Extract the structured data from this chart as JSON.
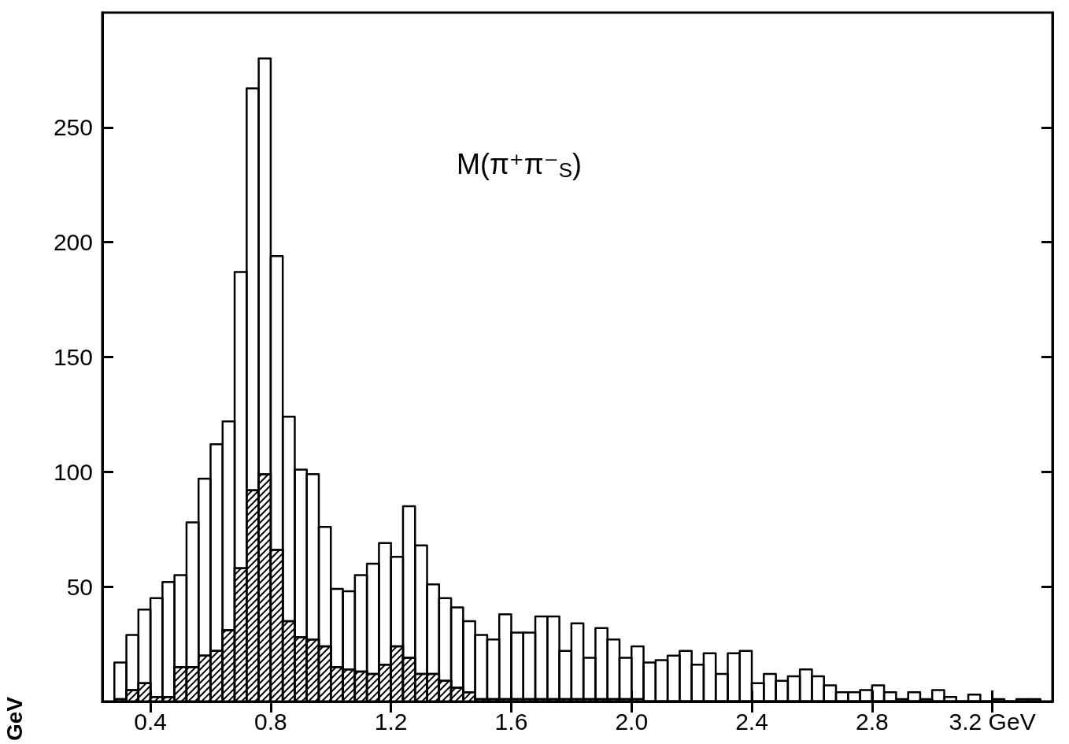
{
  "chart_data": {
    "type": "histogram",
    "ylabel": "GeV",
    "annotations": [
      "M(π⁺π⁻$_{S}$)"
    ],
    "bins": [
      0.28,
      0.32,
      0.36,
      0.4,
      0.44,
      0.48,
      0.52,
      0.56,
      0.6,
      0.64,
      0.68,
      0.72,
      0.76,
      0.8,
      0.84,
      0.88,
      0.92,
      0.96,
      1.0,
      1.04,
      1.08,
      1.12,
      1.16,
      1.2,
      1.24,
      1.28,
      1.32,
      1.36,
      1.4,
      1.44,
      1.48,
      1.52,
      1.56,
      1.6,
      1.64,
      1.68,
      1.72,
      1.76,
      1.8,
      1.84,
      1.88,
      1.92,
      1.96,
      2.0,
      2.04,
      2.08,
      2.12,
      2.16,
      2.2,
      2.24,
      2.28,
      2.32,
      2.36,
      2.4,
      2.44,
      2.48,
      2.52,
      2.56,
      2.6,
      2.64,
      2.68,
      2.72,
      2.76,
      2.8,
      2.84,
      2.88,
      2.92,
      2.96,
      3.0,
      3.04,
      3.08,
      3.12,
      3.16,
      3.2,
      3.24,
      3.28,
      3.32,
      3.36
    ],
    "series": [
      {
        "color": "#000000",
        "values": [
          17,
          29,
          40,
          45,
          52,
          55,
          78,
          97,
          112,
          122,
          187,
          267,
          280,
          194,
          124,
          101,
          99,
          76,
          49,
          48,
          55,
          60,
          69,
          63,
          85,
          68,
          51,
          45,
          41,
          35,
          29,
          27,
          38,
          30,
          30,
          37,
          37,
          22,
          34,
          19,
          32,
          27,
          19,
          24,
          17,
          18,
          20,
          22,
          16,
          21,
          12,
          21,
          22,
          8,
          12,
          9,
          11,
          14,
          11,
          7,
          4,
          4,
          5,
          7,
          4,
          1,
          4,
          1,
          5,
          2,
          0,
          3,
          0,
          1,
          0,
          1,
          1
        ]
      },
      {
        "color": "#000000",
        "values": [
          1,
          5,
          8,
          2,
          2,
          15,
          15,
          20,
          22,
          31,
          58,
          92,
          99,
          66,
          35,
          28,
          27,
          24,
          15,
          14,
          13,
          12,
          16,
          24,
          19,
          12,
          12,
          9,
          6,
          4,
          1,
          1,
          1,
          1,
          1,
          1,
          1,
          1,
          1,
          1,
          1,
          1,
          1,
          1,
          0,
          0,
          0,
          0,
          0,
          0,
          0,
          0,
          0,
          0,
          0,
          0,
          0,
          0,
          0,
          0,
          0,
          0,
          0,
          0,
          0,
          0,
          0,
          0,
          0,
          0,
          0,
          0,
          0,
          0,
          0,
          0,
          0
        ]
      }
    ],
    "xlim": [
      0.24,
      3.4
    ],
    "ylim": [
      0,
      300
    ],
    "xticks": [
      0.4,
      0.8,
      1.2,
      1.6,
      {
        "value": 2.0,
        "label": "2.0"
      },
      2.4,
      2.8,
      {
        "value": 3.2,
        "label": "3.2 GeV"
      }
    ],
    "yticks": [
      {
        "value": 0,
        "label": null
      },
      50,
      100,
      150,
      200,
      250
    ],
    "grid": false
  }
}
